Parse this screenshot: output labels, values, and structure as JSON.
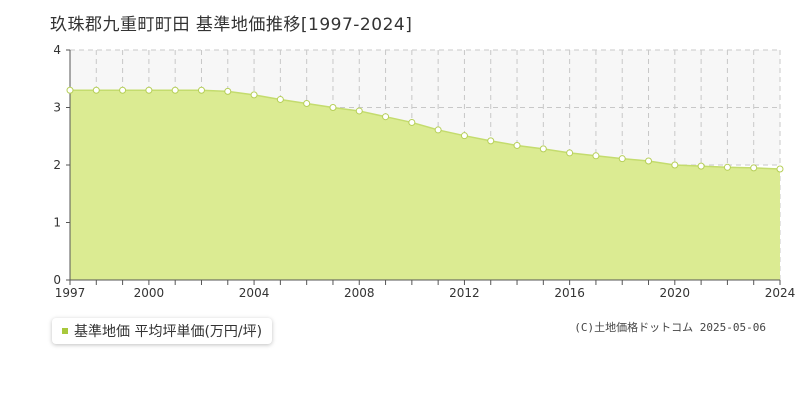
{
  "title": "玖珠郡九重町町田  基準地価推移[1997-2024]",
  "legend": {
    "label": "基準地価 平均坪単価(万円/坪)"
  },
  "credit": "(C)土地価格ドットコム 2025-05-06",
  "colors": {
    "fill": "#dbeb92",
    "line": "#c4dc6e",
    "point": "#ffffff",
    "point_stroke": "#b6cf58",
    "grid": "#c8c8c8",
    "band": "#f7f7f7"
  },
  "chart_data": {
    "type": "area",
    "xlabel": "",
    "ylabel": "",
    "xlim": [
      1997,
      2024
    ],
    "ylim": [
      0,
      4
    ],
    "yticks": [
      0,
      1,
      2,
      3,
      4
    ],
    "xticks": [
      1997,
      2000,
      2004,
      2008,
      2012,
      2016,
      2020,
      2024
    ],
    "grid": true,
    "legend_position": "bottom-left",
    "series": [
      {
        "name": "基準地価 平均坪単価(万円/坪)",
        "x": [
          1997,
          1998,
          1999,
          2000,
          2001,
          2002,
          2003,
          2004,
          2005,
          2006,
          2007,
          2008,
          2009,
          2010,
          2011,
          2012,
          2013,
          2014,
          2015,
          2016,
          2017,
          2018,
          2019,
          2020,
          2021,
          2022,
          2023,
          2024
        ],
        "values": [
          3.3,
          3.3,
          3.3,
          3.3,
          3.3,
          3.3,
          3.28,
          3.22,
          3.14,
          3.07,
          3.0,
          2.94,
          2.84,
          2.74,
          2.61,
          2.51,
          2.42,
          2.34,
          2.28,
          2.21,
          2.16,
          2.11,
          2.07,
          2.0,
          1.98,
          1.96,
          1.95,
          1.93
        ]
      }
    ]
  }
}
